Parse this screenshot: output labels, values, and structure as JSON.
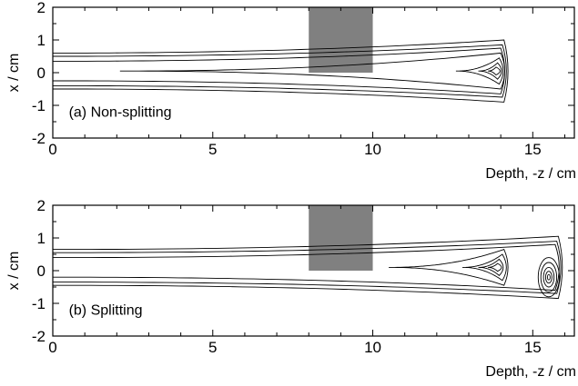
{
  "chart_data": [
    {
      "type": "contour",
      "panel_label": "(a) Non-splitting",
      "xlabel": "Depth, -z / cm",
      "ylabel": "x / cm",
      "xlim": [
        0,
        16.3
      ],
      "ylim": [
        -2,
        2
      ],
      "xticks": [
        "0",
        "5",
        "10",
        "15"
      ],
      "yticks": [
        "2",
        "1",
        "0",
        "-1",
        "-2"
      ],
      "block": {
        "z": [
          8,
          10
        ],
        "x": [
          0,
          2
        ],
        "color": "#808080"
      },
      "contours": [
        {
          "level": 1,
          "z_start": 0,
          "z_end": 14.1,
          "half_width_start": 0.55,
          "half_width_end": 0.95
        },
        {
          "level": 2,
          "z_start": 0,
          "z_end": 14.05,
          "half_width_start": 0.45,
          "half_width_end": 0.8
        },
        {
          "level": 3,
          "z_start": 0,
          "z_end": 14.0,
          "half_width_start": 0.3,
          "half_width_end": 0.7
        },
        {
          "level": 4,
          "z_start": 2.1,
          "z_end": 14.0,
          "half_width_start": 0.0,
          "half_width_end": 0.55
        },
        {
          "level": 5,
          "z_start": 12.6,
          "z_end": 13.95,
          "half_width_start": 0.0,
          "half_width_end": 0.4
        },
        {
          "level": 6,
          "z_start": 13.3,
          "z_end": 13.9,
          "half_width_start": 0.0,
          "half_width_end": 0.25
        },
        {
          "level": 7,
          "z_start": 13.6,
          "z_end": 13.85,
          "half_width_start": 0.0,
          "half_width_end": 0.12
        }
      ],
      "peaks": [
        {
          "z": 13.8,
          "x": 0.05
        }
      ]
    },
    {
      "type": "contour",
      "panel_label": "(b) Splitting",
      "xlabel": "Depth, -z / cm",
      "ylabel": "x / cm",
      "xlim": [
        0,
        16.3
      ],
      "ylim": [
        -2,
        2
      ],
      "xticks": [
        "0",
        "5",
        "10",
        "15"
      ],
      "yticks": [
        "2",
        "1",
        "0",
        "-1",
        "-2"
      ],
      "block": {
        "z": [
          8,
          10
        ],
        "x": [
          0,
          2
        ],
        "color": "#808080"
      },
      "contours": [
        {
          "level": 1,
          "z_start": 0,
          "z_end": 15.8,
          "half_width_start": 0.55,
          "half_width_end": 0.95
        },
        {
          "level": 2,
          "z_start": 0,
          "z_end": 15.75,
          "half_width_start": 0.45,
          "half_width_end": 0.8
        },
        {
          "level": 3,
          "z_start": 0,
          "z_end": 15.7,
          "half_width_start": 0.3,
          "half_width_end": 0.7
        },
        {
          "level": 4,
          "z_start": 10.5,
          "z_end": 14.1,
          "half_width_start": 0.0,
          "half_width_end": 0.55
        },
        {
          "level": 5,
          "z_start": 12.8,
          "z_end": 14.05,
          "half_width_start": 0.0,
          "half_width_end": 0.4
        },
        {
          "level": 6,
          "z_start": 13.3,
          "z_end": 13.95,
          "half_width_start": 0.0,
          "half_width_end": 0.25
        },
        {
          "level": 7,
          "z_start": 13.6,
          "z_end": 13.9,
          "half_width_start": 0.0,
          "half_width_end": 0.12
        }
      ],
      "peaks": [
        {
          "z": 13.8,
          "x": 0.1
        },
        {
          "z": 15.5,
          "x": -0.2
        }
      ]
    }
  ]
}
